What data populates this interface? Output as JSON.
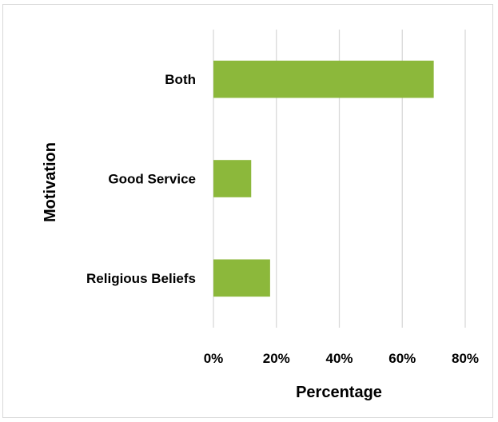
{
  "chart_data": {
    "type": "bar",
    "orientation": "horizontal",
    "categories": [
      "Religious Beliefs",
      "Good Service",
      "Both"
    ],
    "values": [
      18,
      12,
      70
    ],
    "xlabel": "Percentage",
    "ylabel": "Motivation",
    "xlim": [
      0,
      80
    ],
    "xticks": [
      0,
      20,
      40,
      60,
      80
    ],
    "xtick_labels": [
      "0%",
      "20%",
      "40%",
      "60%",
      "80%"
    ],
    "grid": "vertical",
    "legend": "none",
    "bar_color": "#8cb83b",
    "grid_color": "#d9d9d9"
  }
}
